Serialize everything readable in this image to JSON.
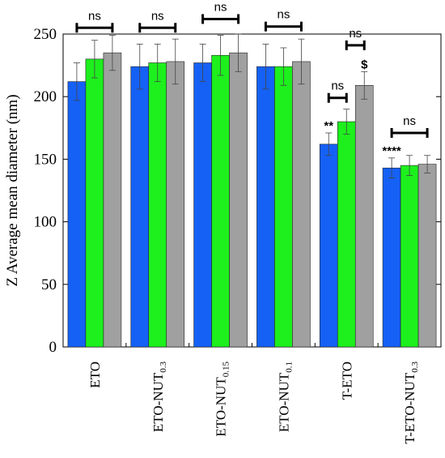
{
  "chart_data": {
    "type": "bar",
    "title": "",
    "ylabel": "Z Average mean diameter (nm)",
    "xlabel": "",
    "ylim": [
      0,
      250
    ],
    "yticks": [
      0,
      50,
      100,
      150,
      200,
      250
    ],
    "grid": false,
    "legend": "none",
    "colors": [
      "#1561f5",
      "#1df01d",
      "#a0a0a0"
    ],
    "categories": [
      {
        "base": "ETO",
        "sub": ""
      },
      {
        "base": "ETO-NUT",
        "sub": "0.3"
      },
      {
        "base": "ETO-NUT",
        "sub": "0.15"
      },
      {
        "base": "ETO-NUT",
        "sub": "0.1"
      },
      {
        "base": "T-ETO",
        "sub": ""
      },
      {
        "base": "T-ETO-NUT",
        "sub": "0.3"
      }
    ],
    "series": [
      {
        "values": [
          212,
          224,
          227,
          224,
          162,
          143
        ],
        "errors": [
          15,
          18,
          15,
          18,
          9,
          8
        ]
      },
      {
        "values": [
          230,
          227,
          233,
          224,
          180,
          145
        ],
        "errors": [
          15,
          15,
          16,
          15,
          10,
          8
        ]
      },
      {
        "values": [
          235,
          228,
          235,
          228,
          209,
          146
        ],
        "errors": [
          14,
          18,
          15,
          18,
          11,
          7
        ]
      }
    ],
    "significance": [
      {
        "category": 0,
        "from": 0,
        "to": 2,
        "y": 255,
        "label": "ns"
      },
      {
        "category": 1,
        "from": 0,
        "to": 2,
        "y": 255,
        "label": "ns"
      },
      {
        "category": 2,
        "from": 0,
        "to": 2,
        "y": 262,
        "label": "ns"
      },
      {
        "category": 3,
        "from": 0,
        "to": 2,
        "y": 256,
        "label": "ns"
      },
      {
        "category": 4,
        "from": 0,
        "to": 1,
        "y": 199,
        "label": "ns"
      },
      {
        "category": 4,
        "from": 1,
        "to": 2,
        "y": 241,
        "label": "ns"
      },
      {
        "category": 5,
        "from": 0,
        "to": 2,
        "y": 171,
        "label": "ns"
      }
    ],
    "annotations": [
      {
        "category": 4,
        "series": 0,
        "label": "**"
      },
      {
        "category": 4,
        "series": 2,
        "label": "$"
      },
      {
        "category": 5,
        "series": 0,
        "label": "****"
      }
    ]
  }
}
